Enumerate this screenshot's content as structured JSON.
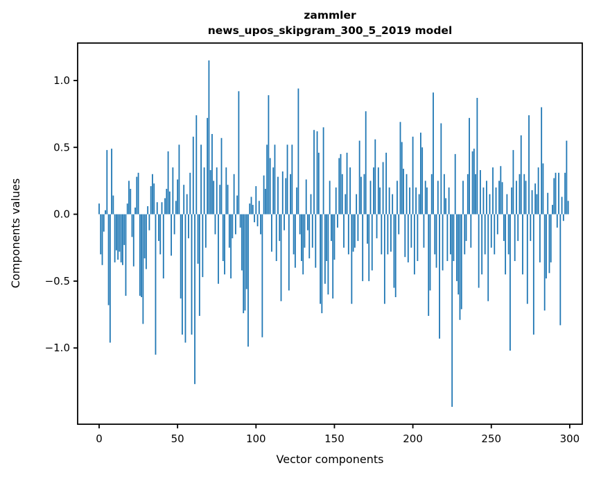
{
  "figure": {
    "title_line1": "zammler",
    "title_line2": "news_upos_skipgram_300_5_2019 model",
    "xlabel": "Vector components",
    "ylabel": "Components values"
  },
  "chart_data": {
    "type": "bar",
    "title": "zammler\nnews_upos_skipgram_300_5_2019 model",
    "xlabel": "Vector components",
    "ylabel": "Components values",
    "legend": null,
    "grid": false,
    "bar_color": "#1f77b4",
    "axis_color": "#000000",
    "background_color": "#ffffff",
    "n_components": 300,
    "x_ticks": [
      0,
      50,
      100,
      150,
      200,
      250,
      300
    ],
    "y_ticks": [
      1.0,
      0.5,
      0.0,
      -0.5,
      -1.0
    ],
    "xlim": [
      -13.7,
      308
    ],
    "ylim": [
      -1.57,
      1.28
    ],
    "values": [
      0.08,
      -0.3,
      -0.38,
      -0.13,
      0.03,
      0.48,
      -0.68,
      -0.96,
      0.49,
      0.14,
      -0.36,
      -0.27,
      -0.34,
      -0.28,
      -0.36,
      -0.38,
      -0.23,
      -0.61,
      0.08,
      0.25,
      0.19,
      -0.17,
      -0.39,
      0.05,
      0.28,
      0.31,
      -0.61,
      -0.62,
      -0.82,
      -0.33,
      -0.41,
      0.06,
      -0.12,
      0.21,
      0.3,
      0.23,
      -1.05,
      0.09,
      -0.2,
      -0.3,
      0.09,
      -0.48,
      0.12,
      0.19,
      0.47,
      0.17,
      -0.31,
      0.35,
      -0.15,
      0.1,
      0.26,
      0.52,
      -0.63,
      -0.9,
      0.22,
      -0.96,
      0.15,
      -0.18,
      0.31,
      -0.9,
      0.58,
      -1.27,
      0.74,
      -0.37,
      -0.76,
      0.52,
      -0.47,
      0.35,
      -0.25,
      0.72,
      1.15,
      0.33,
      0.6,
      0.25,
      -0.15,
      0.35,
      -0.52,
      0.22,
      0.57,
      -0.35,
      -0.45,
      0.35,
      0.22,
      -0.25,
      -0.48,
      -0.18,
      0.3,
      -0.15,
      0.14,
      0.92,
      -0.1,
      -0.42,
      -0.74,
      -0.72,
      -0.56,
      -0.99,
      0.08,
      0.13,
      0.07,
      -0.06,
      0.21,
      -0.09,
      0.1,
      -0.15,
      -0.92,
      0.29,
      0.19,
      0.52,
      0.89,
      0.42,
      -0.28,
      0.35,
      0.52,
      -0.35,
      0.28,
      -0.2,
      -0.65,
      0.32,
      -0.12,
      0.27,
      0.52,
      -0.57,
      0.3,
      0.52,
      -0.3,
      -0.4,
      0.2,
      0.94,
      -0.15,
      -0.35,
      -0.45,
      -0.25,
      0.26,
      -0.12,
      -0.33,
      0.15,
      -0.25,
      0.63,
      -0.4,
      0.62,
      0.46,
      -0.67,
      -0.74,
      0.65,
      -0.52,
      -0.35,
      -0.6,
      0.25,
      -0.2,
      -0.63,
      -0.34,
      0.2,
      -0.1,
      0.42,
      0.45,
      0.3,
      -0.25,
      0.15,
      0.46,
      -0.3,
      0.35,
      -0.67,
      -0.28,
      -0.25,
      0.15,
      -0.2,
      0.55,
      0.28,
      -0.5,
      0.3,
      0.77,
      -0.22,
      -0.5,
      0.25,
      -0.42,
      0.35,
      0.56,
      -0.18,
      0.35,
      0.2,
      -0.3,
      0.39,
      -0.67,
      0.46,
      -0.3,
      0.2,
      -0.28,
      0.15,
      -0.55,
      -0.62,
      0.25,
      -0.15,
      0.69,
      0.54,
      0.34,
      -0.32,
      0.3,
      -0.36,
      0.2,
      -0.25,
      0.58,
      -0.45,
      0.2,
      -0.35,
      0.15,
      0.61,
      0.5,
      -0.25,
      0.25,
      0.2,
      -0.76,
      -0.57,
      0.3,
      0.91,
      -0.3,
      -0.4,
      0.25,
      -0.93,
      0.68,
      -0.42,
      0.3,
      0.12,
      -0.35,
      0.2,
      -0.3,
      -1.44,
      -0.35,
      0.45,
      -0.5,
      -0.6,
      -0.79,
      -0.71,
      0.25,
      -0.3,
      -0.2,
      0.3,
      0.72,
      -0.25,
      0.47,
      0.49,
      0.3,
      0.87,
      -0.55,
      0.33,
      -0.45,
      0.2,
      -0.3,
      0.25,
      -0.65,
      0.15,
      -0.25,
      0.35,
      -0.3,
      0.2,
      -0.15,
      0.25,
      0.36,
      0.24,
      -0.2,
      -0.45,
      0.15,
      -0.3,
      -1.02,
      0.2,
      0.48,
      -0.35,
      0.25,
      -0.2,
      0.3,
      0.59,
      -0.45,
      0.3,
      0.25,
      -0.67,
      0.74,
      -0.2,
      0.18,
      -0.9,
      0.23,
      0.15,
      0.35,
      -0.36,
      0.8,
      0.38,
      -0.72,
      -0.48,
      0.16,
      -0.44,
      -0.36,
      0.07,
      0.27,
      0.31,
      -0.1,
      0.31,
      -0.83,
      0.13,
      -0.05,
      0.31,
      0.55,
      0.1
    ]
  }
}
